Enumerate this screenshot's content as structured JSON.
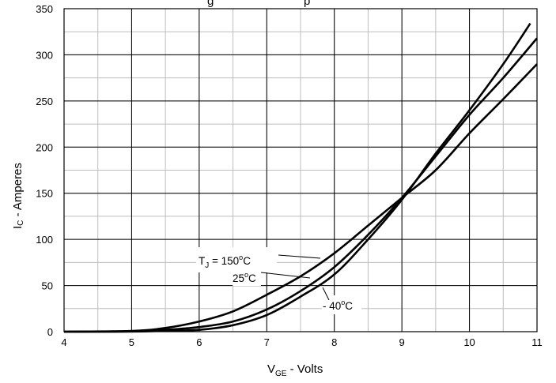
{
  "chart_data": {
    "type": "line",
    "title": "",
    "title_visible_fragment": "g",
    "title_visible_fragment2": "p",
    "xlabel": "V",
    "xlabel_sub": "GE",
    "xlabel_rest": " - Volts",
    "ylabel": "I",
    "ylabel_sub": "C",
    "ylabel_rest": " - Amperes",
    "xlim": [
      4,
      11
    ],
    "ylim": [
      0,
      350
    ],
    "x_ticks": [
      4,
      5,
      6,
      7,
      8,
      9,
      10,
      11
    ],
    "y_ticks": [
      0,
      50,
      100,
      150,
      200,
      250,
      300,
      350
    ],
    "x_minor_step": 0.5,
    "y_minor_step": 25,
    "grid": true,
    "legend": "none",
    "series": [
      {
        "name": "TJ = 150°C",
        "points": [
          [
            4,
            0
          ],
          [
            5,
            0.8
          ],
          [
            5.5,
            4
          ],
          [
            6,
            11
          ],
          [
            6.5,
            22
          ],
          [
            7,
            40
          ],
          [
            7.5,
            60
          ],
          [
            8,
            85
          ],
          [
            8.5,
            115
          ],
          [
            9,
            145
          ],
          [
            9.5,
            175
          ],
          [
            10,
            215
          ],
          [
            10.5,
            252
          ],
          [
            11,
            290
          ]
        ]
      },
      {
        "name": "25°C",
        "points": [
          [
            4,
            0
          ],
          [
            5,
            0.3
          ],
          [
            5.5,
            2
          ],
          [
            6,
            5
          ],
          [
            6.5,
            11
          ],
          [
            7,
            24
          ],
          [
            7.5,
            44
          ],
          [
            8,
            70
          ],
          [
            8.5,
            105
          ],
          [
            9,
            145
          ],
          [
            9.5,
            190
          ],
          [
            10,
            235
          ],
          [
            10.5,
            275
          ],
          [
            11,
            318
          ]
        ]
      },
      {
        "name": "- 40°C",
        "points": [
          [
            4,
            0
          ],
          [
            5,
            0.1
          ],
          [
            5.5,
            1
          ],
          [
            6,
            2
          ],
          [
            6.5,
            7
          ],
          [
            7,
            18
          ],
          [
            7.5,
            38
          ],
          [
            8,
            62
          ],
          [
            8.5,
            100
          ],
          [
            9,
            143
          ],
          [
            9.5,
            193
          ],
          [
            10,
            240
          ],
          [
            10.5,
            290
          ],
          [
            10.9,
            334
          ]
        ]
      }
    ],
    "annotations": [
      {
        "main": "T",
        "sub": "J",
        "rest": " = 150",
        "sup": "o",
        "tail": "C"
      },
      {
        "main": "25",
        "sup": "o",
        "tail": "C"
      },
      {
        "main": "- 40",
        "sup": "o",
        "tail": "C"
      }
    ]
  }
}
